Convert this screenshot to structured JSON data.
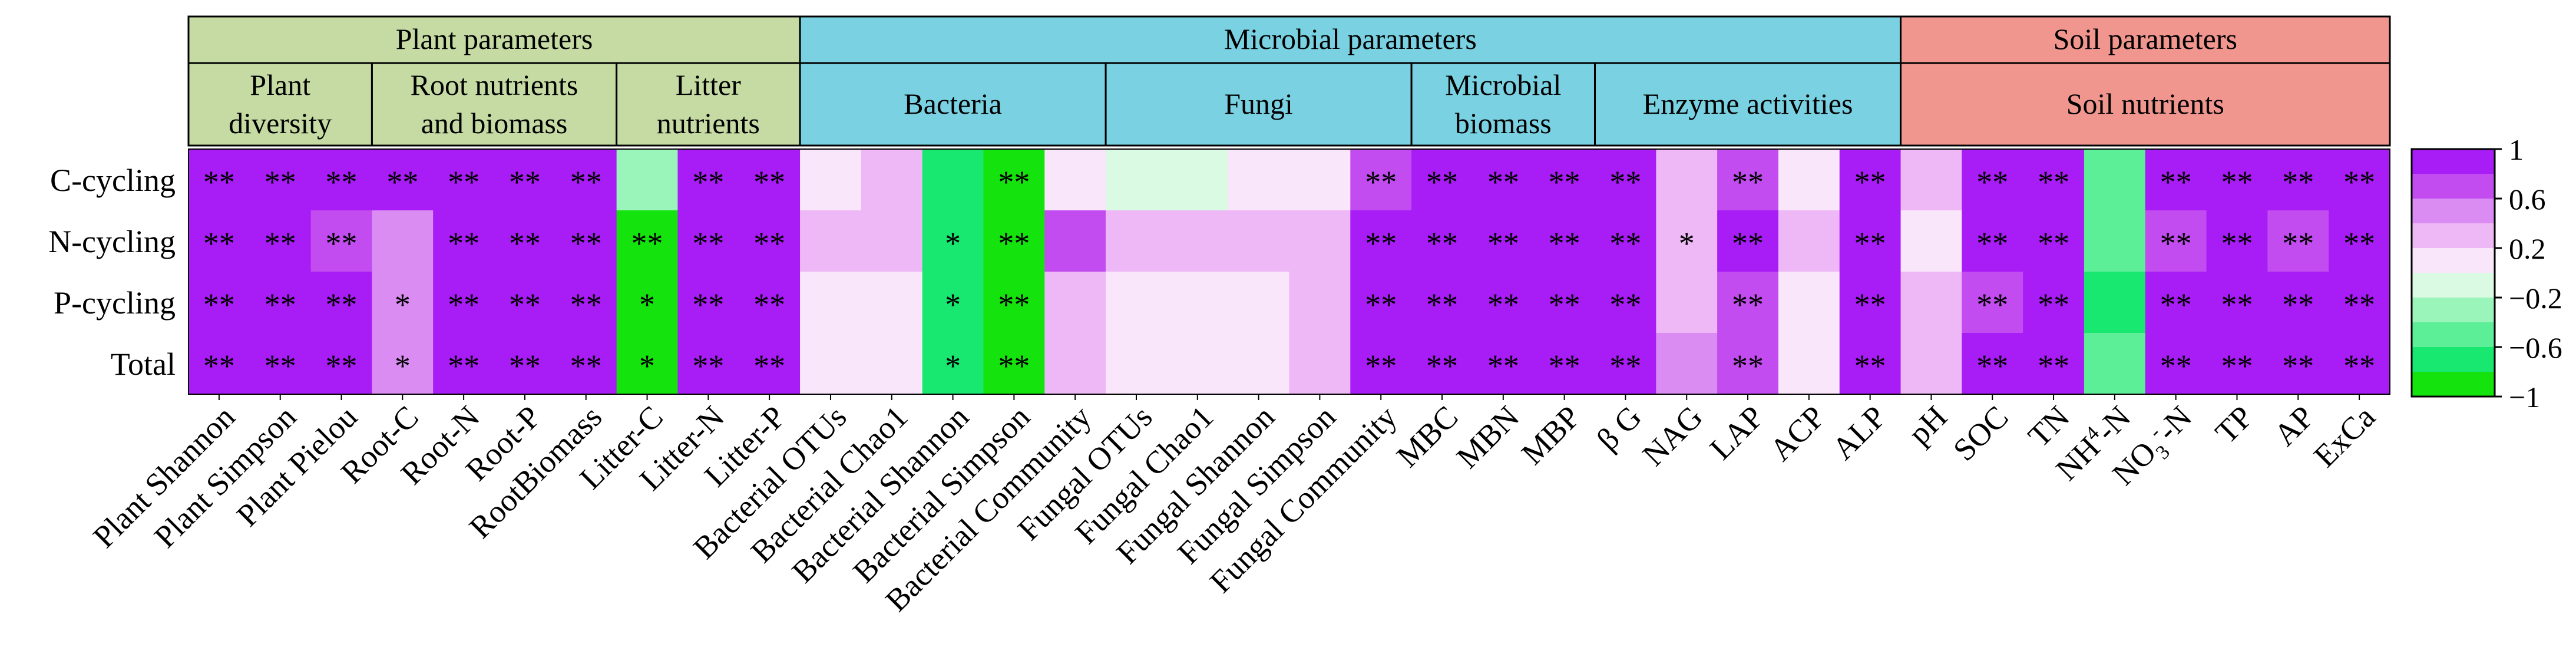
{
  "chart_data": {
    "type": "heatmap",
    "rows": [
      "C-cycling",
      "N-cycling",
      "P-cycling",
      "Total"
    ],
    "groups": [
      {
        "label": "Plant parameters",
        "color": "#c5dba3",
        "subgroups": [
          {
            "label_lines": [
              "Plant",
              "diversity"
            ],
            "count": 3
          },
          {
            "label_lines": [
              "Root nutrients",
              "and biomass"
            ],
            "count": 4
          },
          {
            "label_lines": [
              "Litter",
              "nutrients"
            ],
            "count": 3
          }
        ]
      },
      {
        "label": "Microbial parameters",
        "color": "#79d1e2",
        "subgroups": [
          {
            "label_lines": [
              "Bacteria"
            ],
            "count": 5
          },
          {
            "label_lines": [
              "Fungi"
            ],
            "count": 5
          },
          {
            "label_lines": [
              "Microbial",
              "biomass"
            ],
            "count": 3
          },
          {
            "label_lines": [
              "Enzyme activities"
            ],
            "count": 5
          }
        ]
      },
      {
        "label": "Soil parameters",
        "color": "#f0968f",
        "subgroups": [
          {
            "label_lines": [
              "Soil nutrients"
            ],
            "count": 8
          }
        ]
      }
    ],
    "columns": [
      {
        "label": "Plant Shannon"
      },
      {
        "label": "Plant Simpson"
      },
      {
        "label": "Plant Pielou"
      },
      {
        "label": "Root-C"
      },
      {
        "label": "Root-N"
      },
      {
        "label": "Root-P"
      },
      {
        "label": "RootBiomass"
      },
      {
        "label": "Litter-C"
      },
      {
        "label": "Litter-N"
      },
      {
        "label": "Litter-P"
      },
      {
        "label": "Bacterial OTUs"
      },
      {
        "label": "Bacterial Chao1"
      },
      {
        "label": "Bacterial Shannon"
      },
      {
        "label": "Bacterial Simpson"
      },
      {
        "label": "Bacterial Community"
      },
      {
        "label": "Fungal OTUs"
      },
      {
        "label": "Fungal Chao1"
      },
      {
        "label": "Fungal Shannon"
      },
      {
        "label": "Fungal Simpson"
      },
      {
        "label": "Fungal Community"
      },
      {
        "label": "MBC"
      },
      {
        "label": "MBN"
      },
      {
        "label": "MBP"
      },
      {
        "label": "β G"
      },
      {
        "label": "NAG"
      },
      {
        "label": "LAP"
      },
      {
        "label": "ACP"
      },
      {
        "label": "ALP"
      },
      {
        "label": "pH"
      },
      {
        "label": "SOC"
      },
      {
        "label": "TN"
      },
      {
        "label": "NH",
        "sup": "4",
        "suffix": "-N"
      },
      {
        "label": "NO",
        "sub": "3",
        "supraw": "-",
        "suffix": "-N"
      },
      {
        "label": "TP"
      },
      {
        "label": "AP"
      },
      {
        "label": "ExCa"
      }
    ],
    "values": [
      [
        0.9,
        0.9,
        0.9,
        0.9,
        0.9,
        0.9,
        0.9,
        -0.4,
        0.9,
        0.9,
        0.1,
        0.3,
        -0.7,
        -0.9,
        0.1,
        -0.15,
        -0.15,
        0.1,
        0.1,
        0.7,
        0.9,
        0.9,
        0.9,
        0.9,
        0.3,
        0.6,
        0.1,
        0.9,
        0.3,
        0.9,
        0.9,
        -0.5,
        0.9,
        0.9,
        0.9,
        0.9
      ],
      [
        0.9,
        0.9,
        0.7,
        0.5,
        0.9,
        0.9,
        0.9,
        -0.9,
        0.9,
        0.9,
        0.3,
        0.3,
        -0.7,
        -0.9,
        0.6,
        0.3,
        0.3,
        0.3,
        0.3,
        0.9,
        0.9,
        0.9,
        0.9,
        0.9,
        0.3,
        0.9,
        0.3,
        0.9,
        0.1,
        0.9,
        0.9,
        -0.5,
        0.7,
        0.9,
        0.7,
        0.9
      ],
      [
        0.9,
        0.9,
        0.9,
        0.5,
        0.9,
        0.9,
        0.9,
        -0.9,
        0.9,
        0.9,
        0.1,
        0.1,
        -0.7,
        -0.9,
        0.3,
        0.1,
        0.1,
        0.1,
        0.3,
        0.9,
        0.9,
        0.9,
        0.9,
        0.9,
        0.3,
        0.6,
        0.1,
        0.9,
        0.3,
        0.7,
        0.9,
        -0.7,
        0.9,
        0.9,
        0.9,
        0.9
      ],
      [
        0.9,
        0.9,
        0.9,
        0.5,
        0.9,
        0.9,
        0.9,
        -0.9,
        0.9,
        0.9,
        0.1,
        0.1,
        -0.7,
        -0.9,
        0.3,
        0.1,
        0.1,
        0.1,
        0.3,
        0.9,
        0.9,
        0.9,
        0.9,
        0.9,
        0.5,
        0.6,
        0.1,
        0.9,
        0.3,
        0.9,
        0.9,
        -0.5,
        0.9,
        0.9,
        0.9,
        0.9
      ]
    ],
    "significance": [
      [
        "**",
        "**",
        "**",
        "**",
        "**",
        "**",
        "**",
        "",
        "**",
        "**",
        "",
        "",
        "",
        "**",
        "",
        "",
        "",
        "",
        "",
        "**",
        "**",
        "**",
        "**",
        "**",
        "",
        "**",
        "",
        "**",
        "",
        "**",
        "**",
        "",
        "**",
        "**",
        "**",
        "**"
      ],
      [
        "**",
        "**",
        "**",
        "",
        "**",
        "**",
        "**",
        "**",
        "**",
        "**",
        "",
        "",
        "*",
        "**",
        "",
        "",
        "",
        "",
        "",
        "**",
        "**",
        "**",
        "**",
        "**",
        "*",
        "**",
        "",
        "**",
        "",
        "**",
        "**",
        "",
        "**",
        "**",
        "**",
        "**"
      ],
      [
        "**",
        "**",
        "**",
        "*",
        "**",
        "**",
        "**",
        "*",
        "**",
        "**",
        "",
        "",
        "*",
        "**",
        "",
        "",
        "",
        "",
        "",
        "**",
        "**",
        "**",
        "**",
        "**",
        "",
        "**",
        "",
        "**",
        "",
        "**",
        "**",
        "",
        "**",
        "**",
        "**",
        "**"
      ],
      [
        "**",
        "**",
        "**",
        "*",
        "**",
        "**",
        "**",
        "*",
        "**",
        "**",
        "",
        "",
        "*",
        "**",
        "",
        "",
        "",
        "",
        "",
        "**",
        "**",
        "**",
        "**",
        "**",
        "",
        "**",
        "",
        "**",
        "",
        "**",
        "**",
        "",
        "**",
        "**",
        "**",
        "**"
      ]
    ],
    "colorbar": {
      "range": [
        -1,
        1
      ],
      "tick_labels": [
        "1",
        "0.6",
        "0.2",
        "−0.2",
        "−0.6",
        "−1"
      ],
      "bins": [
        {
          "range": [
            0.8,
            1.0
          ],
          "color": "#a81cf5"
        },
        {
          "range": [
            0.6,
            0.8
          ],
          "color": "#c24cf0"
        },
        {
          "range": [
            0.4,
            0.6
          ],
          "color": "#da8cf3"
        },
        {
          "range": [
            0.2,
            0.4
          ],
          "color": "#eeb7f5"
        },
        {
          "range": [
            0.0,
            0.2
          ],
          "color": "#fae6fb"
        },
        {
          "range": [
            -0.2,
            0.0
          ],
          "color": "#dbfae3"
        },
        {
          "range": [
            -0.4,
            -0.2
          ],
          "color": "#9af5ba"
        },
        {
          "range": [
            -0.6,
            -0.4
          ],
          "color": "#5cef98"
        },
        {
          "range": [
            -0.8,
            -0.6
          ],
          "color": "#18e770"
        },
        {
          "range": [
            -1.0,
            -0.8
          ],
          "color": "#14e30d"
        }
      ]
    }
  }
}
